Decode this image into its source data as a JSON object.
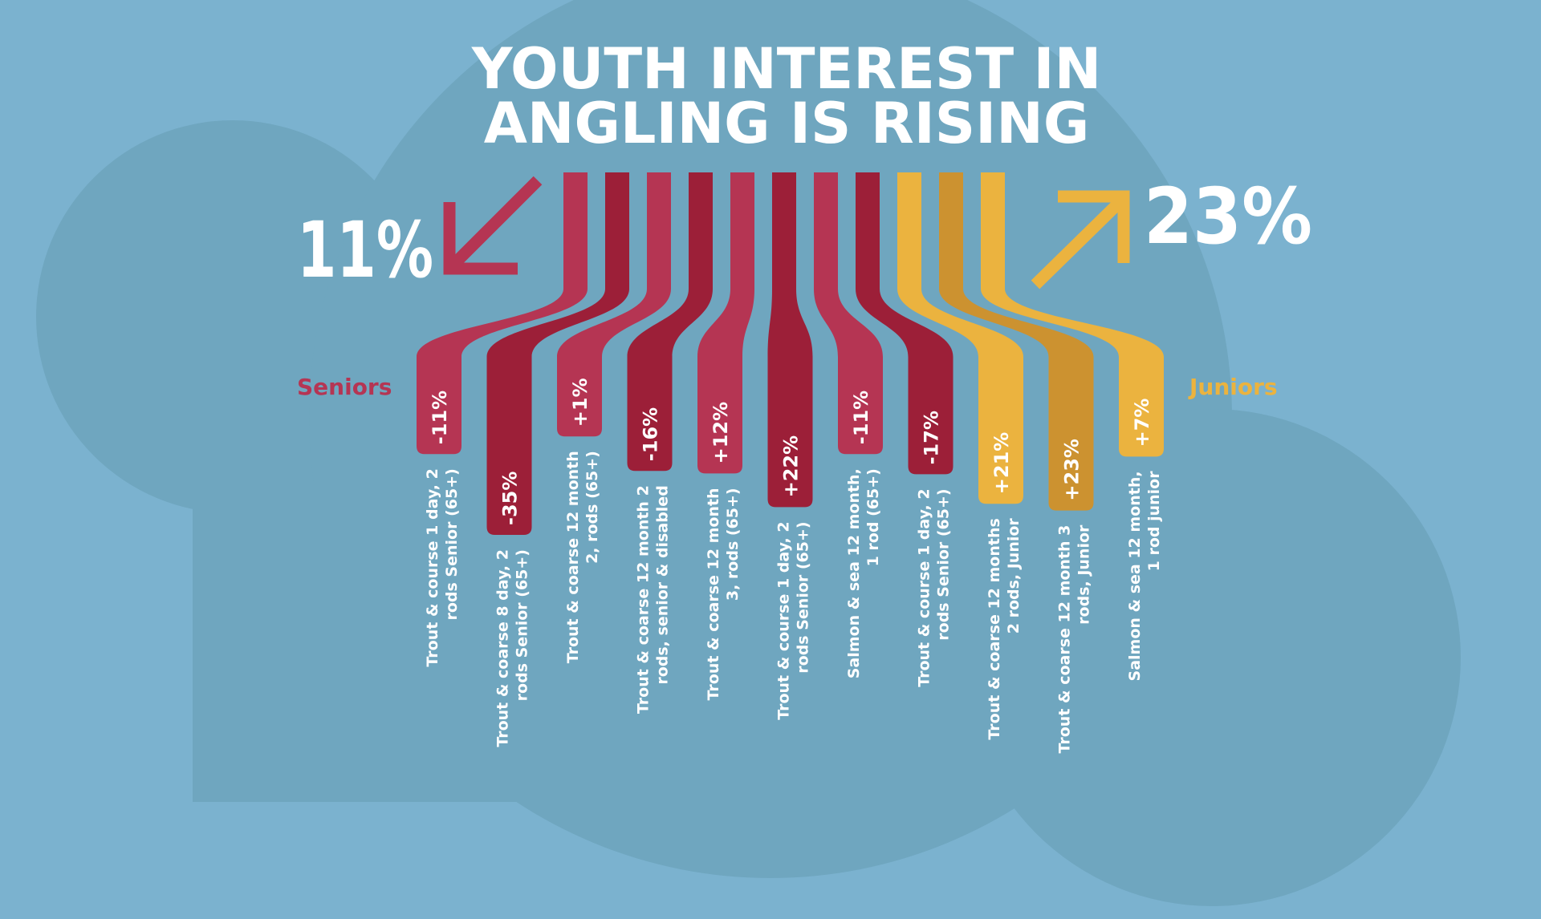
{
  "title_line1": "YOUTH INTEREST IN",
  "title_line2": "ANGLING IS RISING",
  "seniors": {
    "label": "Seniors",
    "summary": "11%",
    "direction": "down"
  },
  "juniors": {
    "label": "Juniors",
    "summary": "23%",
    "direction": "up"
  },
  "colors": {
    "background": "#7bb2cf",
    "cloud": "#6fa6bf",
    "senior_light": "#b53553",
    "senior_dark": "#9c1f38",
    "junior_light": "#ebb33f",
    "junior_dark": "#cc9230",
    "text": "#ffffff"
  },
  "chart_data": {
    "type": "bar",
    "title": "YOUTH INTEREST IN ANGLING IS RISING",
    "categories": [
      "Trout & course 1 day, 2 rods Senior (65+)",
      "Trout & coarse 8 day, 2 rods Senior (65+)",
      "Trout & coarse 12 month 2, rods (65+)",
      "Trout & coarse 12 month 2 rods, senior & disabled",
      "Trout & coarse 12 month 3, rods (65+)",
      "Trout & course 1 day, 2 rods Senior (65+)",
      "Salmon & sea 12 month, 1 rod (65+)",
      "Trout & course 1 day, 2 rods Senior (65+)",
      "Trout & coarse 12 months 2 rods, Junior",
      "Trout & coarse 12 month 3 rods, Junior",
      "Salmon & sea 12 month, 1 rod junior"
    ],
    "labels": [
      "-11%",
      "-35%",
      "+1%",
      "-16%",
      "+12%",
      "+22%",
      "-11%",
      "-17%",
      "+21%",
      "+23%",
      "+7%"
    ],
    "values": [
      -11,
      -35,
      1,
      -16,
      12,
      22,
      -11,
      -17,
      21,
      23,
      7
    ],
    "groups": [
      "Seniors",
      "Seniors",
      "Seniors",
      "Seniors",
      "Seniors",
      "Seniors",
      "Seniors",
      "Seniors",
      "Juniors",
      "Juniors",
      "Juniors"
    ]
  }
}
